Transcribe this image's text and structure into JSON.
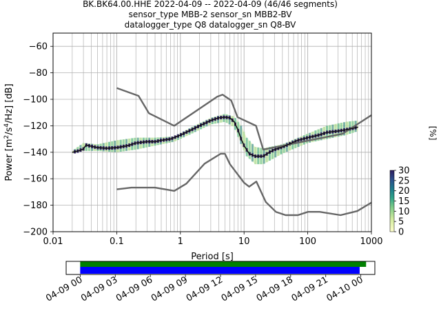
{
  "header": {
    "line1": "BK.BK64.00.HHE   2022-04-09 -- 2022-04-09  (46/46 segments)",
    "line2": "sensor_type MBB-2 sensor_sn MBB2-BV",
    "line3": "datalogger_type Q8 datalogger_sn Q8-BV"
  },
  "chart_data": [
    {
      "type": "line",
      "title": "BK.BK64.00.HHE   2022-04-09 -- 2022-04-09  (46/46 segments)",
      "subtitle": "sensor_type MBB-2 sensor_sn MBB2-BV / datalogger_type Q8 datalogger_sn Q8-BV",
      "xlabel": "Period [s]",
      "ylabel": "Power [m²/s⁴/Hz] [dB]",
      "xscale": "log",
      "xlim": [
        0.01,
        1000
      ],
      "ylim": [
        -200,
        -50
      ],
      "x_ticks": [
        "0.01",
        "0.1",
        "1",
        "10",
        "100",
        "1000"
      ],
      "y_ticks": [
        "−60",
        "−80",
        "−100",
        "−120",
        "−140",
        "−160",
        "−180",
        "−200"
      ],
      "y_tick_values": [
        -60,
        -80,
        -100,
        -120,
        -140,
        -160,
        -180,
        -200
      ],
      "grid": true,
      "colorbar": {
        "label": "[%]",
        "ticks": [
          "0",
          "5",
          "10",
          "15",
          "20",
          "25",
          "30"
        ],
        "range": [
          0,
          30
        ]
      },
      "series": [
        {
          "role": "nhnm",
          "color": "#666666",
          "points": [
            [
              0.1,
              -91.5
            ],
            [
              0.22,
              -97.4
            ],
            [
              0.32,
              -110.5
            ],
            [
              0.8,
              -120
            ],
            [
              3.8,
              -98
            ],
            [
              4.6,
              -96.5
            ],
            [
              6.3,
              -101
            ],
            [
              7.9,
              -113.5
            ],
            [
              15.4,
              -120
            ],
            [
              20,
              -138
            ],
            [
              354.8,
              -126
            ],
            [
              1000,
              -112
            ]
          ]
        },
        {
          "role": "nlnm",
          "color": "#666666",
          "points": [
            [
              0.1,
              -168
            ],
            [
              0.17,
              -166.7
            ],
            [
              0.4,
              -166.7
            ],
            [
              0.8,
              -169.2
            ],
            [
              1.24,
              -163.7
            ],
            [
              2.4,
              -148.6
            ],
            [
              4.3,
              -141.1
            ],
            [
              5,
              -141.1
            ],
            [
              6,
              -149
            ],
            [
              10,
              -163
            ],
            [
              12,
              -166
            ],
            [
              15.6,
              -162.1
            ],
            [
              21.9,
              -177.5
            ],
            [
              31.6,
              -185
            ],
            [
              45,
              -187.5
            ],
            [
              70,
              -187.5
            ],
            [
              101,
              -185
            ],
            [
              154,
              -185
            ],
            [
              328,
              -187.5
            ],
            [
              600,
              -184.4
            ],
            [
              1000,
              -178
            ]
          ]
        },
        {
          "role": "mode",
          "color": "#111111",
          "points": [
            [
              0.02,
              -140
            ],
            [
              0.025,
              -139
            ],
            [
              0.03,
              -137.5
            ],
            [
              0.033,
              -134.5
            ],
            [
              0.04,
              -135.5
            ],
            [
              0.05,
              -136.5
            ],
            [
              0.07,
              -137
            ],
            [
              0.1,
              -136.5
            ],
            [
              0.15,
              -135
            ],
            [
              0.2,
              -133
            ],
            [
              0.3,
              -132
            ],
            [
              0.4,
              -132
            ],
            [
              0.5,
              -131
            ],
            [
              0.7,
              -130
            ],
            [
              1,
              -127
            ],
            [
              1.5,
              -123
            ],
            [
              2,
              -120
            ],
            [
              3,
              -116
            ],
            [
              4,
              -114
            ],
            [
              5,
              -113.5
            ],
            [
              6,
              -114
            ],
            [
              7,
              -117
            ],
            [
              8,
              -123
            ],
            [
              9,
              -130
            ],
            [
              10,
              -135
            ],
            [
              12,
              -141
            ],
            [
              15,
              -143
            ],
            [
              20,
              -143
            ],
            [
              25,
              -140
            ],
            [
              30,
              -138
            ],
            [
              40,
              -136
            ],
            [
              50,
              -134
            ],
            [
              70,
              -131
            ],
            [
              100,
              -129
            ],
            [
              150,
              -127
            ],
            [
              200,
              -125
            ],
            [
              300,
              -124
            ],
            [
              400,
              -123
            ],
            [
              500,
              -122
            ],
            [
              620,
              -121
            ]
          ]
        }
      ],
      "pdf_bounds": {
        "upper": [
          [
            0.02,
            -139
          ],
          [
            0.03,
            -133
          ],
          [
            0.05,
            -134
          ],
          [
            0.1,
            -131
          ],
          [
            0.2,
            -129
          ],
          [
            0.4,
            -129
          ],
          [
            0.8,
            -128
          ],
          [
            1.5,
            -121
          ],
          [
            3,
            -114
          ],
          [
            5,
            -111
          ],
          [
            7,
            -113
          ],
          [
            9,
            -120
          ],
          [
            11,
            -129
          ],
          [
            15,
            -136
          ],
          [
            20,
            -137
          ],
          [
            40,
            -134
          ],
          [
            100,
            -126
          ],
          [
            200,
            -120
          ],
          [
            400,
            -117
          ],
          [
            620,
            -116
          ]
        ],
        "lower": [
          [
            0.02,
            -141
          ],
          [
            0.03,
            -139
          ],
          [
            0.05,
            -139
          ],
          [
            0.1,
            -140
          ],
          [
            0.2,
            -138
          ],
          [
            0.4,
            -135
          ],
          [
            0.8,
            -132
          ],
          [
            1.5,
            -126
          ],
          [
            3,
            -119
          ],
          [
            5,
            -117
          ],
          [
            7,
            -121
          ],
          [
            9,
            -134
          ],
          [
            11,
            -143
          ],
          [
            15,
            -149
          ],
          [
            20,
            -149
          ],
          [
            40,
            -141
          ],
          [
            100,
            -133
          ],
          [
            200,
            -130
          ],
          [
            400,
            -127
          ],
          [
            620,
            -124
          ]
        ]
      }
    },
    {
      "type": "timeline",
      "x_ticks": [
        "04-09 00",
        "04-09 03",
        "04-09 06",
        "04-09 09",
        "04-09 12",
        "04-09 15",
        "04-09 18",
        "04-09 21",
        "04-10 00"
      ],
      "x_tick_hours": [
        0,
        3,
        6,
        9,
        12,
        15,
        18,
        21,
        24
      ],
      "xlim_hours": [
        -1.2,
        25.2
      ],
      "bars": [
        {
          "name": "data",
          "color": "#008000",
          "start_hour": 0,
          "end_hour": 24.45
        },
        {
          "name": "psd",
          "color": "#0000ff",
          "start_hour": 0,
          "end_hour": 23.9
        }
      ]
    }
  ]
}
